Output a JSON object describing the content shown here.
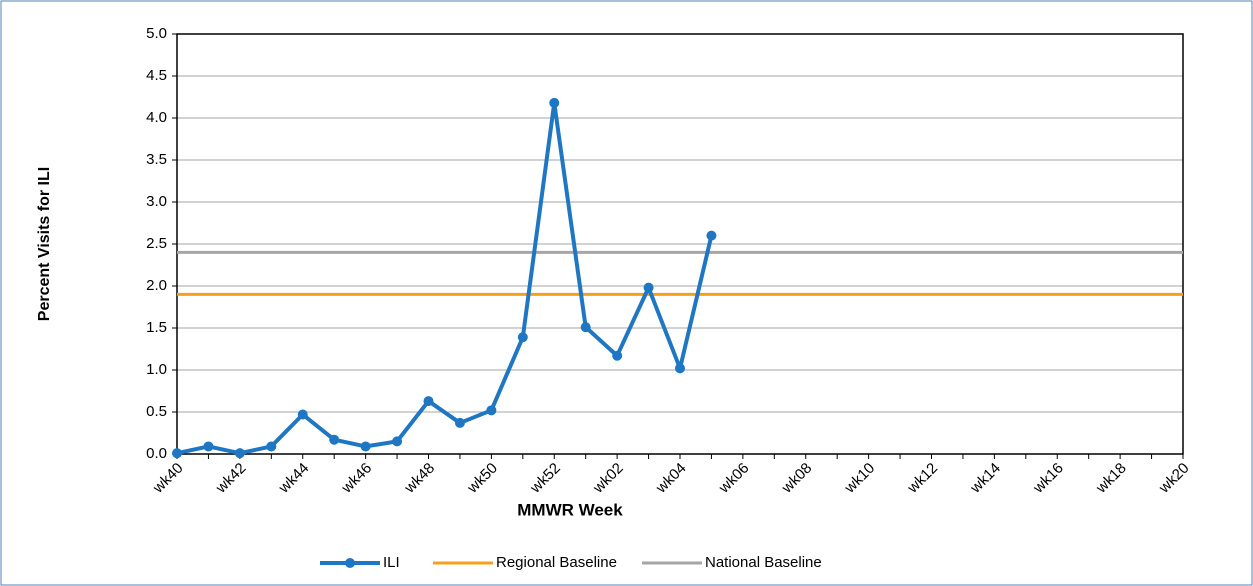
{
  "chart_data": {
    "type": "line",
    "y_label": "Percent Visits for ILI",
    "x_label": "MMWR Week",
    "categories": [
      "wk40",
      null,
      "wk42",
      null,
      "wk44",
      null,
      "wk46",
      null,
      "wk48",
      null,
      "wk50",
      null,
      "wk52",
      null,
      "wk02",
      null,
      "wk04",
      null,
      "wk06",
      null,
      "wk08",
      null,
      "wk10",
      null,
      "wk12",
      null,
      "wk14",
      null,
      "wk16",
      null,
      "wk18",
      null,
      "wk20"
    ],
    "series": [
      {
        "name": "ILI",
        "color": "#1f77c4",
        "values": [
          0.01,
          0.09,
          0.01,
          0.09,
          0.47,
          0.17,
          0.09,
          0.15,
          0.63,
          0.37,
          0.52,
          1.39,
          4.18,
          1.51,
          1.17,
          1.98,
          1.02,
          2.6,
          null,
          null,
          null,
          null,
          null,
          null,
          null,
          null,
          null,
          null,
          null,
          null,
          null,
          null,
          null
        ]
      },
      {
        "name": "Regional Baseline",
        "color": "#f5a01a",
        "value": 1.9
      },
      {
        "name": "National Baseline",
        "color": "#a6a6a6",
        "value": 2.4
      }
    ],
    "ylim": [
      0,
      5
    ],
    "yticks": [
      {
        "value": 0,
        "label": "0.0"
      },
      0.5,
      {
        "value": 1,
        "label": "1.0"
      },
      1.5,
      {
        "value": 2,
        "label": "2.0"
      },
      2.5,
      {
        "value": 3,
        "label": "3.0"
      },
      3.5,
      {
        "value": 4,
        "label": "4.0"
      },
      4.5,
      {
        "value": 5,
        "label": "5.0"
      }
    ],
    "grid": true
  }
}
